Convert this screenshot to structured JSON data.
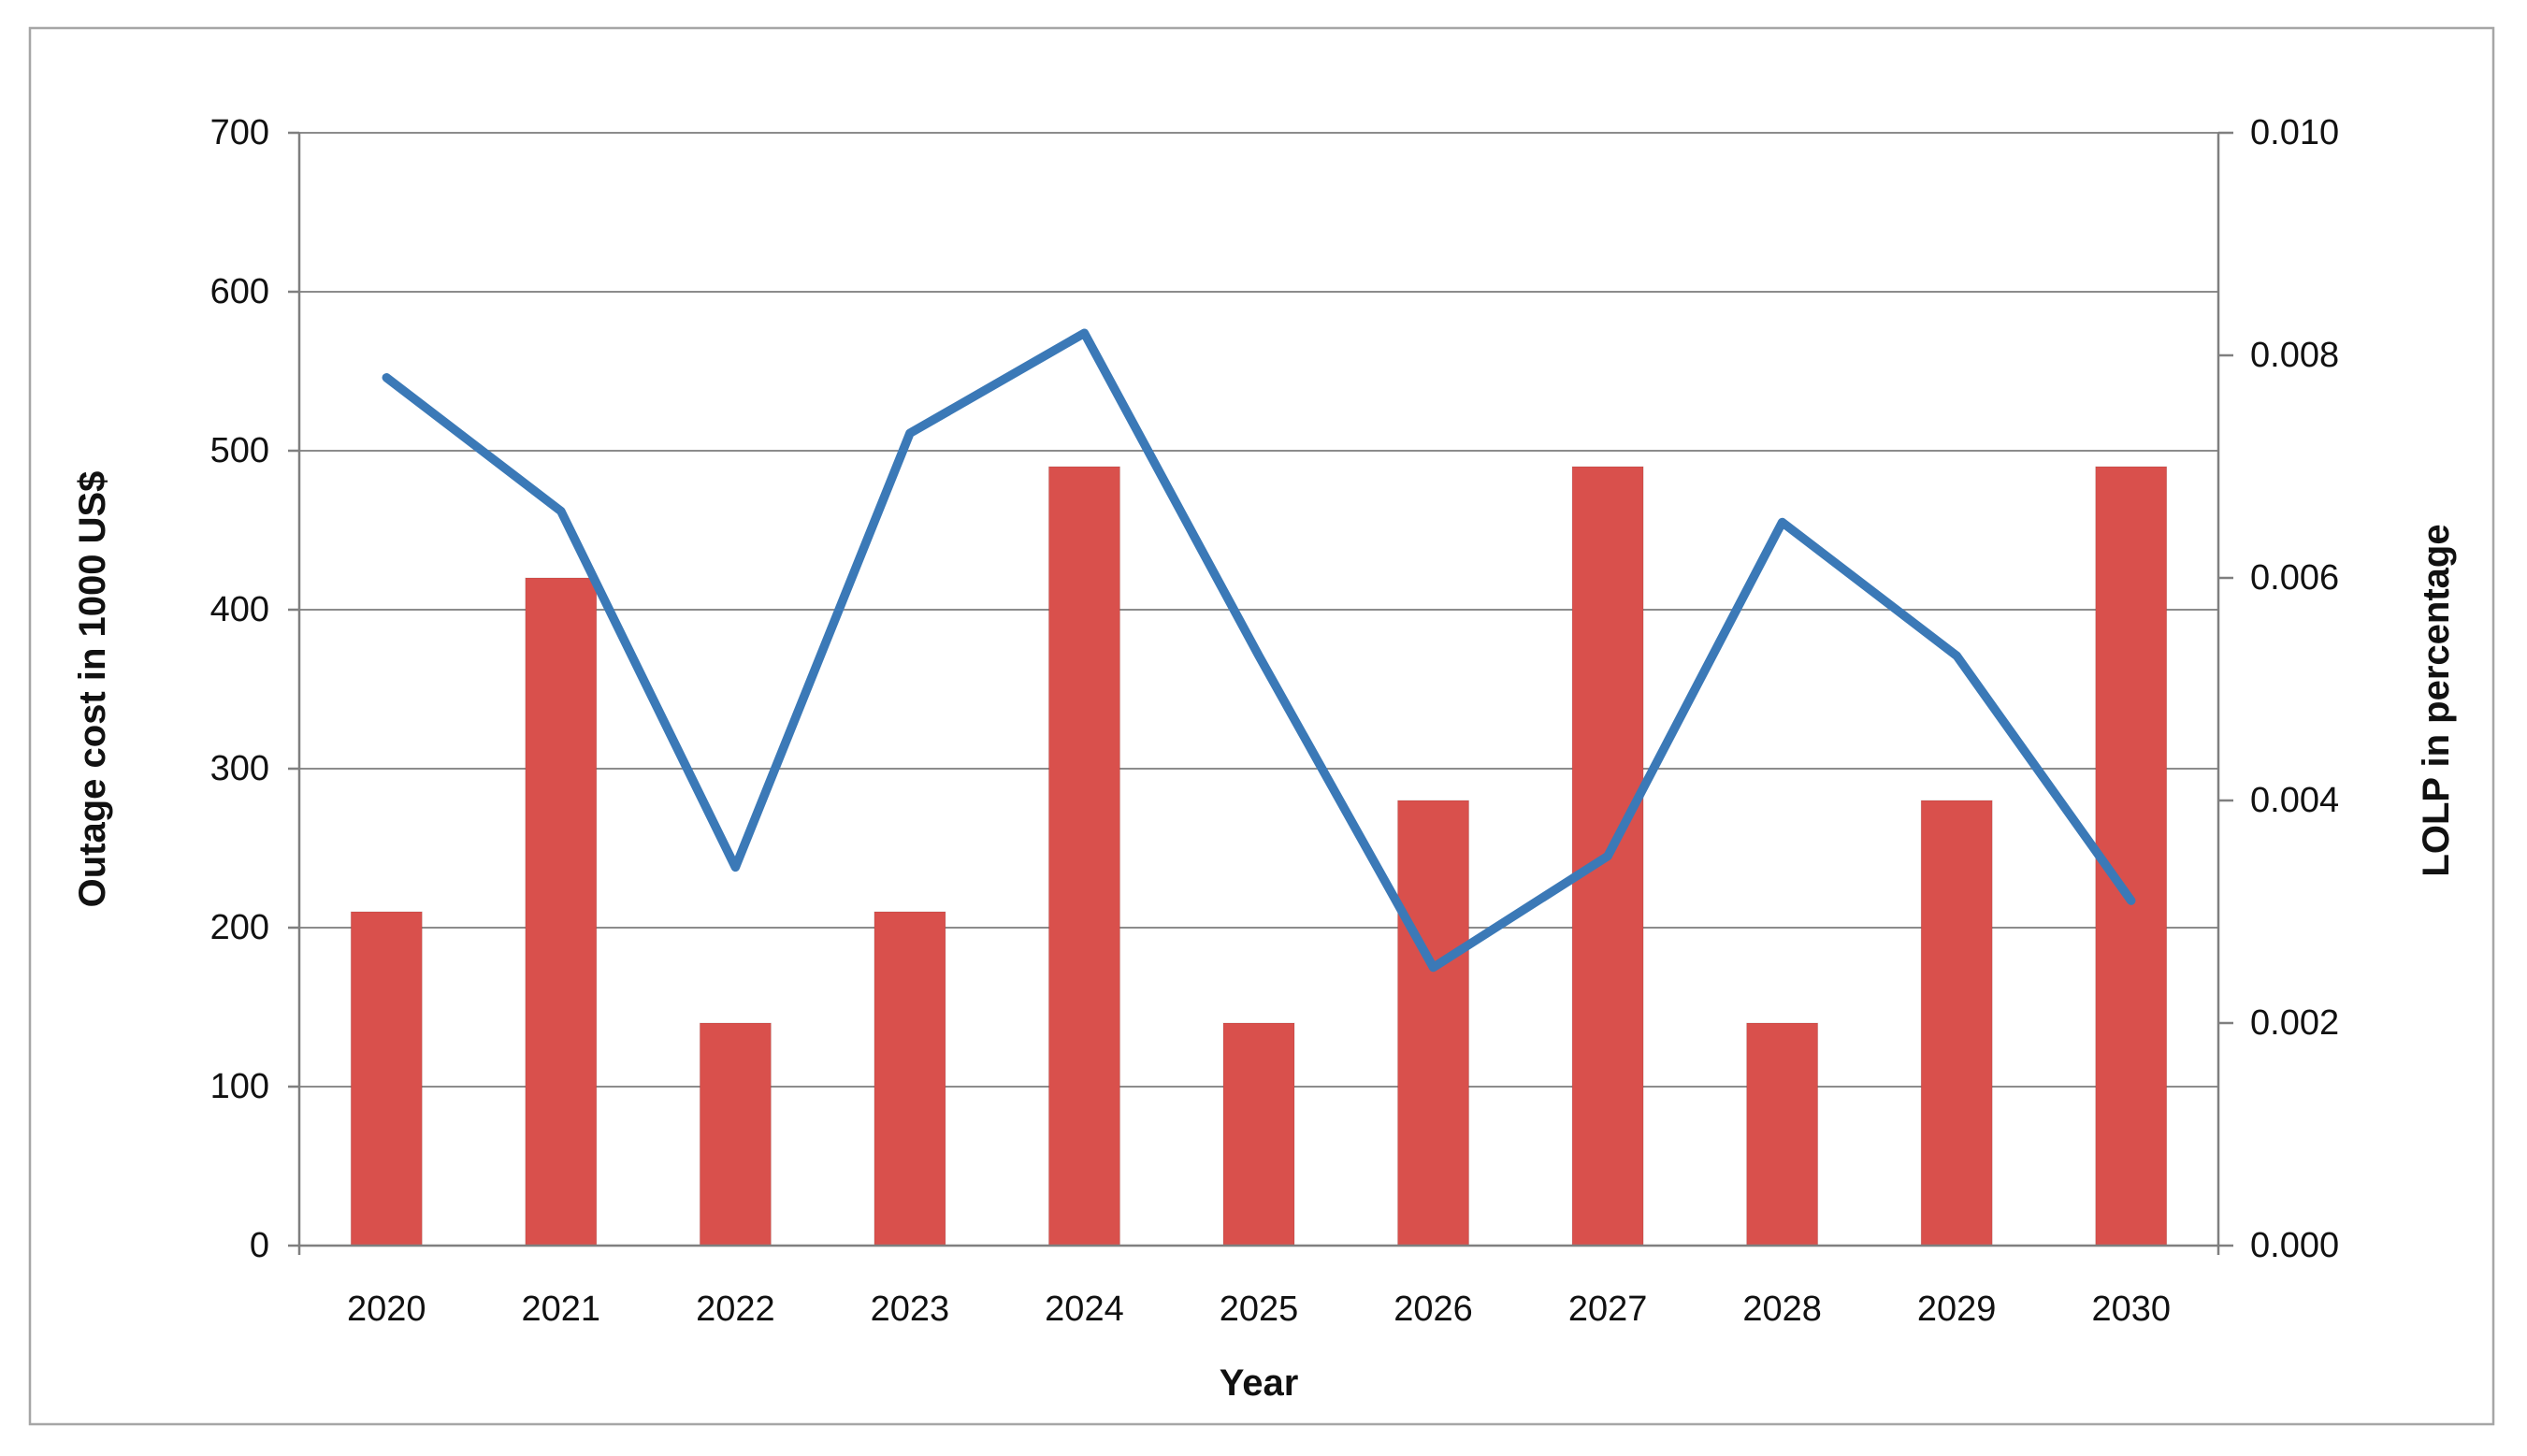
{
  "chart_data": {
    "type": "combo-bar-line",
    "categories": [
      "2020",
      "2021",
      "2022",
      "2023",
      "2024",
      "2025",
      "2026",
      "2027",
      "2028",
      "2029",
      "2030"
    ],
    "series": [
      {
        "name": "Outage cost",
        "type": "bar",
        "axis": "left",
        "color": "#d9504c",
        "values": [
          210,
          420,
          140,
          210,
          490,
          140,
          280,
          490,
          140,
          280,
          490
        ]
      },
      {
        "name": "LOLP",
        "type": "line",
        "axis": "right",
        "color": "#3b79b7",
        "values": [
          0.0078,
          0.0066,
          0.0034,
          0.0073,
          0.0082,
          0.0053,
          0.0025,
          0.0035,
          0.0065,
          0.0053,
          0.0031
        ]
      }
    ],
    "left_axis": {
      "label": "Outage cost in 1000 US$",
      "min": 0,
      "max": 700,
      "step": 100
    },
    "right_axis": {
      "label": "LOLP in percentage",
      "min": 0.0,
      "max": 0.01,
      "step": 0.002,
      "decimals": 3
    },
    "xlabel": "Year",
    "grid": true,
    "legend": "none",
    "plot_background": "#ffffff"
  }
}
